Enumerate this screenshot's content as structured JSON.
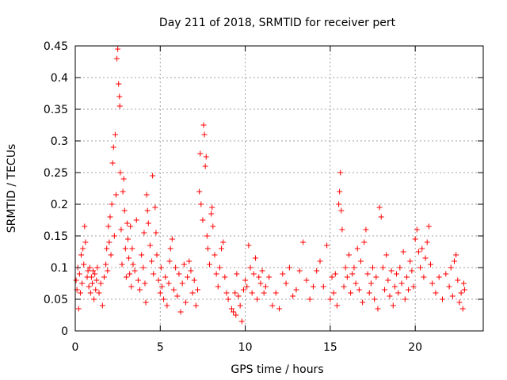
{
  "chart_data": {
    "type": "scatter",
    "title": "Day 211 of 2018, SRMTID for receiver pert",
    "xlabel": "GPS time / hours",
    "ylabel": "SRMTID / TECUs",
    "xlim": [
      0,
      24
    ],
    "ylim": [
      0,
      0.45
    ],
    "xticks": [
      0,
      5,
      10,
      15,
      20
    ],
    "xtick_labels": [
      "0",
      "5",
      "10",
      "15",
      "20"
    ],
    "yticks": [
      0,
      0.05,
      0.1,
      0.15,
      0.2,
      0.25,
      0.3,
      0.35,
      0.4,
      0.45
    ],
    "ytick_labels": [
      "0",
      "0.05",
      "0.1",
      "0.15",
      "0.2",
      "0.25",
      "0.3",
      "0.35",
      "0.4",
      "0.45"
    ],
    "grid": true,
    "marker": "+",
    "series": [
      {
        "name": "SRMTID",
        "color": "#ff0000",
        "points": [
          [
            0.05,
            0.08
          ],
          [
            0.1,
            0.065
          ],
          [
            0.15,
            0.1
          ],
          [
            0.2,
            0.035
          ],
          [
            0.25,
            0.09
          ],
          [
            0.3,
            0.06
          ],
          [
            0.35,
            0.12
          ],
          [
            0.4,
            0.075
          ],
          [
            0.45,
            0.13
          ],
          [
            0.5,
            0.105
          ],
          [
            0.55,
            0.165
          ],
          [
            0.6,
            0.14
          ],
          [
            0.7,
            0.085
          ],
          [
            0.75,
            0.095
          ],
          [
            0.8,
            0.07
          ],
          [
            0.85,
            0.1
          ],
          [
            0.9,
            0.06
          ],
          [
            0.95,
            0.085
          ],
          [
            1.0,
            0.075
          ],
          [
            1.05,
            0.095
          ],
          [
            1.1,
            0.05
          ],
          [
            1.15,
            0.09
          ],
          [
            1.2,
            0.065
          ],
          [
            1.25,
            0.08
          ],
          [
            1.3,
            0.1
          ],
          [
            1.4,
            0.06
          ],
          [
            1.5,
            0.075
          ],
          [
            1.6,
            0.04
          ],
          [
            1.7,
            0.085
          ],
          [
            1.8,
            0.105
          ],
          [
            1.85,
            0.13
          ],
          [
            1.9,
            0.095
          ],
          [
            1.95,
            0.165
          ],
          [
            2.0,
            0.14
          ],
          [
            2.05,
            0.18
          ],
          [
            2.1,
            0.12
          ],
          [
            2.15,
            0.2
          ],
          [
            2.2,
            0.265
          ],
          [
            2.25,
            0.29
          ],
          [
            2.3,
            0.15
          ],
          [
            2.35,
            0.31
          ],
          [
            2.4,
            0.215
          ],
          [
            2.45,
            0.43
          ],
          [
            2.5,
            0.445
          ],
          [
            2.55,
            0.39
          ],
          [
            2.6,
            0.37
          ],
          [
            2.62,
            0.355
          ],
          [
            2.65,
            0.25
          ],
          [
            2.7,
            0.16
          ],
          [
            2.75,
            0.105
          ],
          [
            2.8,
            0.22
          ],
          [
            2.85,
            0.24
          ],
          [
            2.9,
            0.19
          ],
          [
            2.95,
            0.13
          ],
          [
            3.0,
            0.085
          ],
          [
            3.05,
            0.17
          ],
          [
            3.1,
            0.145
          ],
          [
            3.15,
            0.115
          ],
          [
            3.2,
            0.09
          ],
          [
            3.25,
            0.165
          ],
          [
            3.3,
            0.07
          ],
          [
            3.35,
            0.13
          ],
          [
            3.4,
            0.105
          ],
          [
            3.5,
            0.095
          ],
          [
            3.6,
            0.175
          ],
          [
            3.7,
            0.08
          ],
          [
            3.8,
            0.065
          ],
          [
            3.9,
            0.12
          ],
          [
            4.0,
            0.1
          ],
          [
            4.05,
            0.155
          ],
          [
            4.1,
            0.075
          ],
          [
            4.15,
            0.045
          ],
          [
            4.2,
            0.215
          ],
          [
            4.25,
            0.19
          ],
          [
            4.3,
            0.17
          ],
          [
            4.4,
            0.135
          ],
          [
            4.5,
            0.11
          ],
          [
            4.55,
            0.245
          ],
          [
            4.6,
            0.09
          ],
          [
            4.7,
            0.195
          ],
          [
            4.75,
            0.155
          ],
          [
            4.8,
            0.12
          ],
          [
            4.9,
            0.08
          ],
          [
            5.0,
            0.06
          ],
          [
            5.05,
            0.1
          ],
          [
            5.1,
            0.07
          ],
          [
            5.2,
            0.05
          ],
          [
            5.3,
            0.085
          ],
          [
            5.4,
            0.04
          ],
          [
            5.5,
            0.075
          ],
          [
            5.55,
            0.11
          ],
          [
            5.6,
            0.13
          ],
          [
            5.7,
            0.145
          ],
          [
            5.8,
            0.065
          ],
          [
            5.9,
            0.1
          ],
          [
            6.0,
            0.055
          ],
          [
            6.1,
            0.09
          ],
          [
            6.2,
            0.03
          ],
          [
            6.3,
            0.075
          ],
          [
            6.4,
            0.105
          ],
          [
            6.5,
            0.045
          ],
          [
            6.6,
            0.085
          ],
          [
            6.7,
            0.11
          ],
          [
            6.8,
            0.095
          ],
          [
            6.9,
            0.06
          ],
          [
            7.0,
            0.08
          ],
          [
            7.1,
            0.04
          ],
          [
            7.2,
            0.065
          ],
          [
            7.3,
            0.22
          ],
          [
            7.35,
            0.28
          ],
          [
            7.4,
            0.2
          ],
          [
            7.5,
            0.175
          ],
          [
            7.55,
            0.325
          ],
          [
            7.6,
            0.31
          ],
          [
            7.65,
            0.26
          ],
          [
            7.7,
            0.275
          ],
          [
            7.75,
            0.15
          ],
          [
            7.8,
            0.13
          ],
          [
            7.9,
            0.105
          ],
          [
            8.0,
            0.185
          ],
          [
            8.05,
            0.195
          ],
          [
            8.1,
            0.165
          ],
          [
            8.2,
            0.12
          ],
          [
            8.3,
            0.09
          ],
          [
            8.4,
            0.07
          ],
          [
            8.5,
            0.1
          ],
          [
            8.6,
            0.13
          ],
          [
            8.7,
            0.14
          ],
          [
            8.8,
            0.085
          ],
          [
            8.9,
            0.06
          ],
          [
            9.0,
            0.05
          ],
          [
            9.2,
            0.035
          ],
          [
            9.3,
            0.03
          ],
          [
            9.4,
            0.06
          ],
          [
            9.45,
            0.025
          ],
          [
            9.5,
            0.09
          ],
          [
            9.6,
            0.055
          ],
          [
            9.7,
            0.04
          ],
          [
            9.8,
            0.015
          ],
          [
            9.9,
            0.065
          ],
          [
            10.0,
            0.08
          ],
          [
            10.1,
            0.07
          ],
          [
            10.2,
            0.135
          ],
          [
            10.3,
            0.1
          ],
          [
            10.4,
            0.06
          ],
          [
            10.5,
            0.09
          ],
          [
            10.6,
            0.115
          ],
          [
            10.7,
            0.05
          ],
          [
            10.8,
            0.085
          ],
          [
            10.9,
            0.075
          ],
          [
            11.0,
            0.095
          ],
          [
            11.1,
            0.06
          ],
          [
            11.2,
            0.07
          ],
          [
            11.4,
            0.085
          ],
          [
            11.6,
            0.04
          ],
          [
            11.8,
            0.06
          ],
          [
            12.0,
            0.035
          ],
          [
            12.2,
            0.09
          ],
          [
            12.4,
            0.075
          ],
          [
            12.6,
            0.1
          ],
          [
            12.8,
            0.055
          ],
          [
            13.0,
            0.065
          ],
          [
            13.2,
            0.095
          ],
          [
            13.4,
            0.14
          ],
          [
            13.6,
            0.08
          ],
          [
            13.8,
            0.05
          ],
          [
            14.0,
            0.07
          ],
          [
            14.2,
            0.095
          ],
          [
            14.4,
            0.11
          ],
          [
            14.6,
            0.07
          ],
          [
            14.8,
            0.135
          ],
          [
            15.0,
            0.05
          ],
          [
            15.1,
            0.085
          ],
          [
            15.2,
            0.06
          ],
          [
            15.3,
            0.09
          ],
          [
            15.4,
            0.04
          ],
          [
            15.5,
            0.2
          ],
          [
            15.55,
            0.22
          ],
          [
            15.6,
            0.25
          ],
          [
            15.65,
            0.19
          ],
          [
            15.7,
            0.16
          ],
          [
            15.8,
            0.07
          ],
          [
            15.9,
            0.1
          ],
          [
            16.0,
            0.085
          ],
          [
            16.1,
            0.12
          ],
          [
            16.2,
            0.06
          ],
          [
            16.3,
            0.09
          ],
          [
            16.4,
            0.1
          ],
          [
            16.5,
            0.075
          ],
          [
            16.6,
            0.13
          ],
          [
            16.7,
            0.065
          ],
          [
            16.8,
            0.11
          ],
          [
            16.9,
            0.045
          ],
          [
            17.0,
            0.14
          ],
          [
            17.1,
            0.16
          ],
          [
            17.2,
            0.09
          ],
          [
            17.3,
            0.06
          ],
          [
            17.4,
            0.075
          ],
          [
            17.5,
            0.1
          ],
          [
            17.6,
            0.05
          ],
          [
            17.7,
            0.085
          ],
          [
            17.8,
            0.035
          ],
          [
            17.9,
            0.195
          ],
          [
            18.0,
            0.18
          ],
          [
            18.1,
            0.1
          ],
          [
            18.2,
            0.065
          ],
          [
            18.3,
            0.12
          ],
          [
            18.4,
            0.08
          ],
          [
            18.5,
            0.055
          ],
          [
            18.6,
            0.095
          ],
          [
            18.7,
            0.04
          ],
          [
            18.8,
            0.07
          ],
          [
            18.9,
            0.09
          ],
          [
            19.0,
            0.06
          ],
          [
            19.1,
            0.1
          ],
          [
            19.2,
            0.075
          ],
          [
            19.3,
            0.125
          ],
          [
            19.4,
            0.05
          ],
          [
            19.5,
            0.085
          ],
          [
            19.6,
            0.065
          ],
          [
            19.7,
            0.11
          ],
          [
            19.8,
            0.095
          ],
          [
            19.9,
            0.07
          ],
          [
            20.0,
            0.145
          ],
          [
            20.1,
            0.16
          ],
          [
            20.2,
            0.125
          ],
          [
            20.3,
            0.1
          ],
          [
            20.4,
            0.13
          ],
          [
            20.5,
            0.085
          ],
          [
            20.6,
            0.115
          ],
          [
            20.7,
            0.14
          ],
          [
            20.8,
            0.165
          ],
          [
            20.9,
            0.105
          ],
          [
            21.0,
            0.075
          ],
          [
            21.2,
            0.06
          ],
          [
            21.4,
            0.085
          ],
          [
            21.6,
            0.05
          ],
          [
            21.8,
            0.09
          ],
          [
            22.0,
            0.07
          ],
          [
            22.1,
            0.1
          ],
          [
            22.2,
            0.055
          ],
          [
            22.3,
            0.11
          ],
          [
            22.4,
            0.12
          ],
          [
            22.5,
            0.08
          ],
          [
            22.6,
            0.045
          ],
          [
            22.7,
            0.06
          ],
          [
            22.8,
            0.035
          ],
          [
            22.85,
            0.075
          ],
          [
            22.9,
            0.065
          ]
        ]
      }
    ]
  }
}
